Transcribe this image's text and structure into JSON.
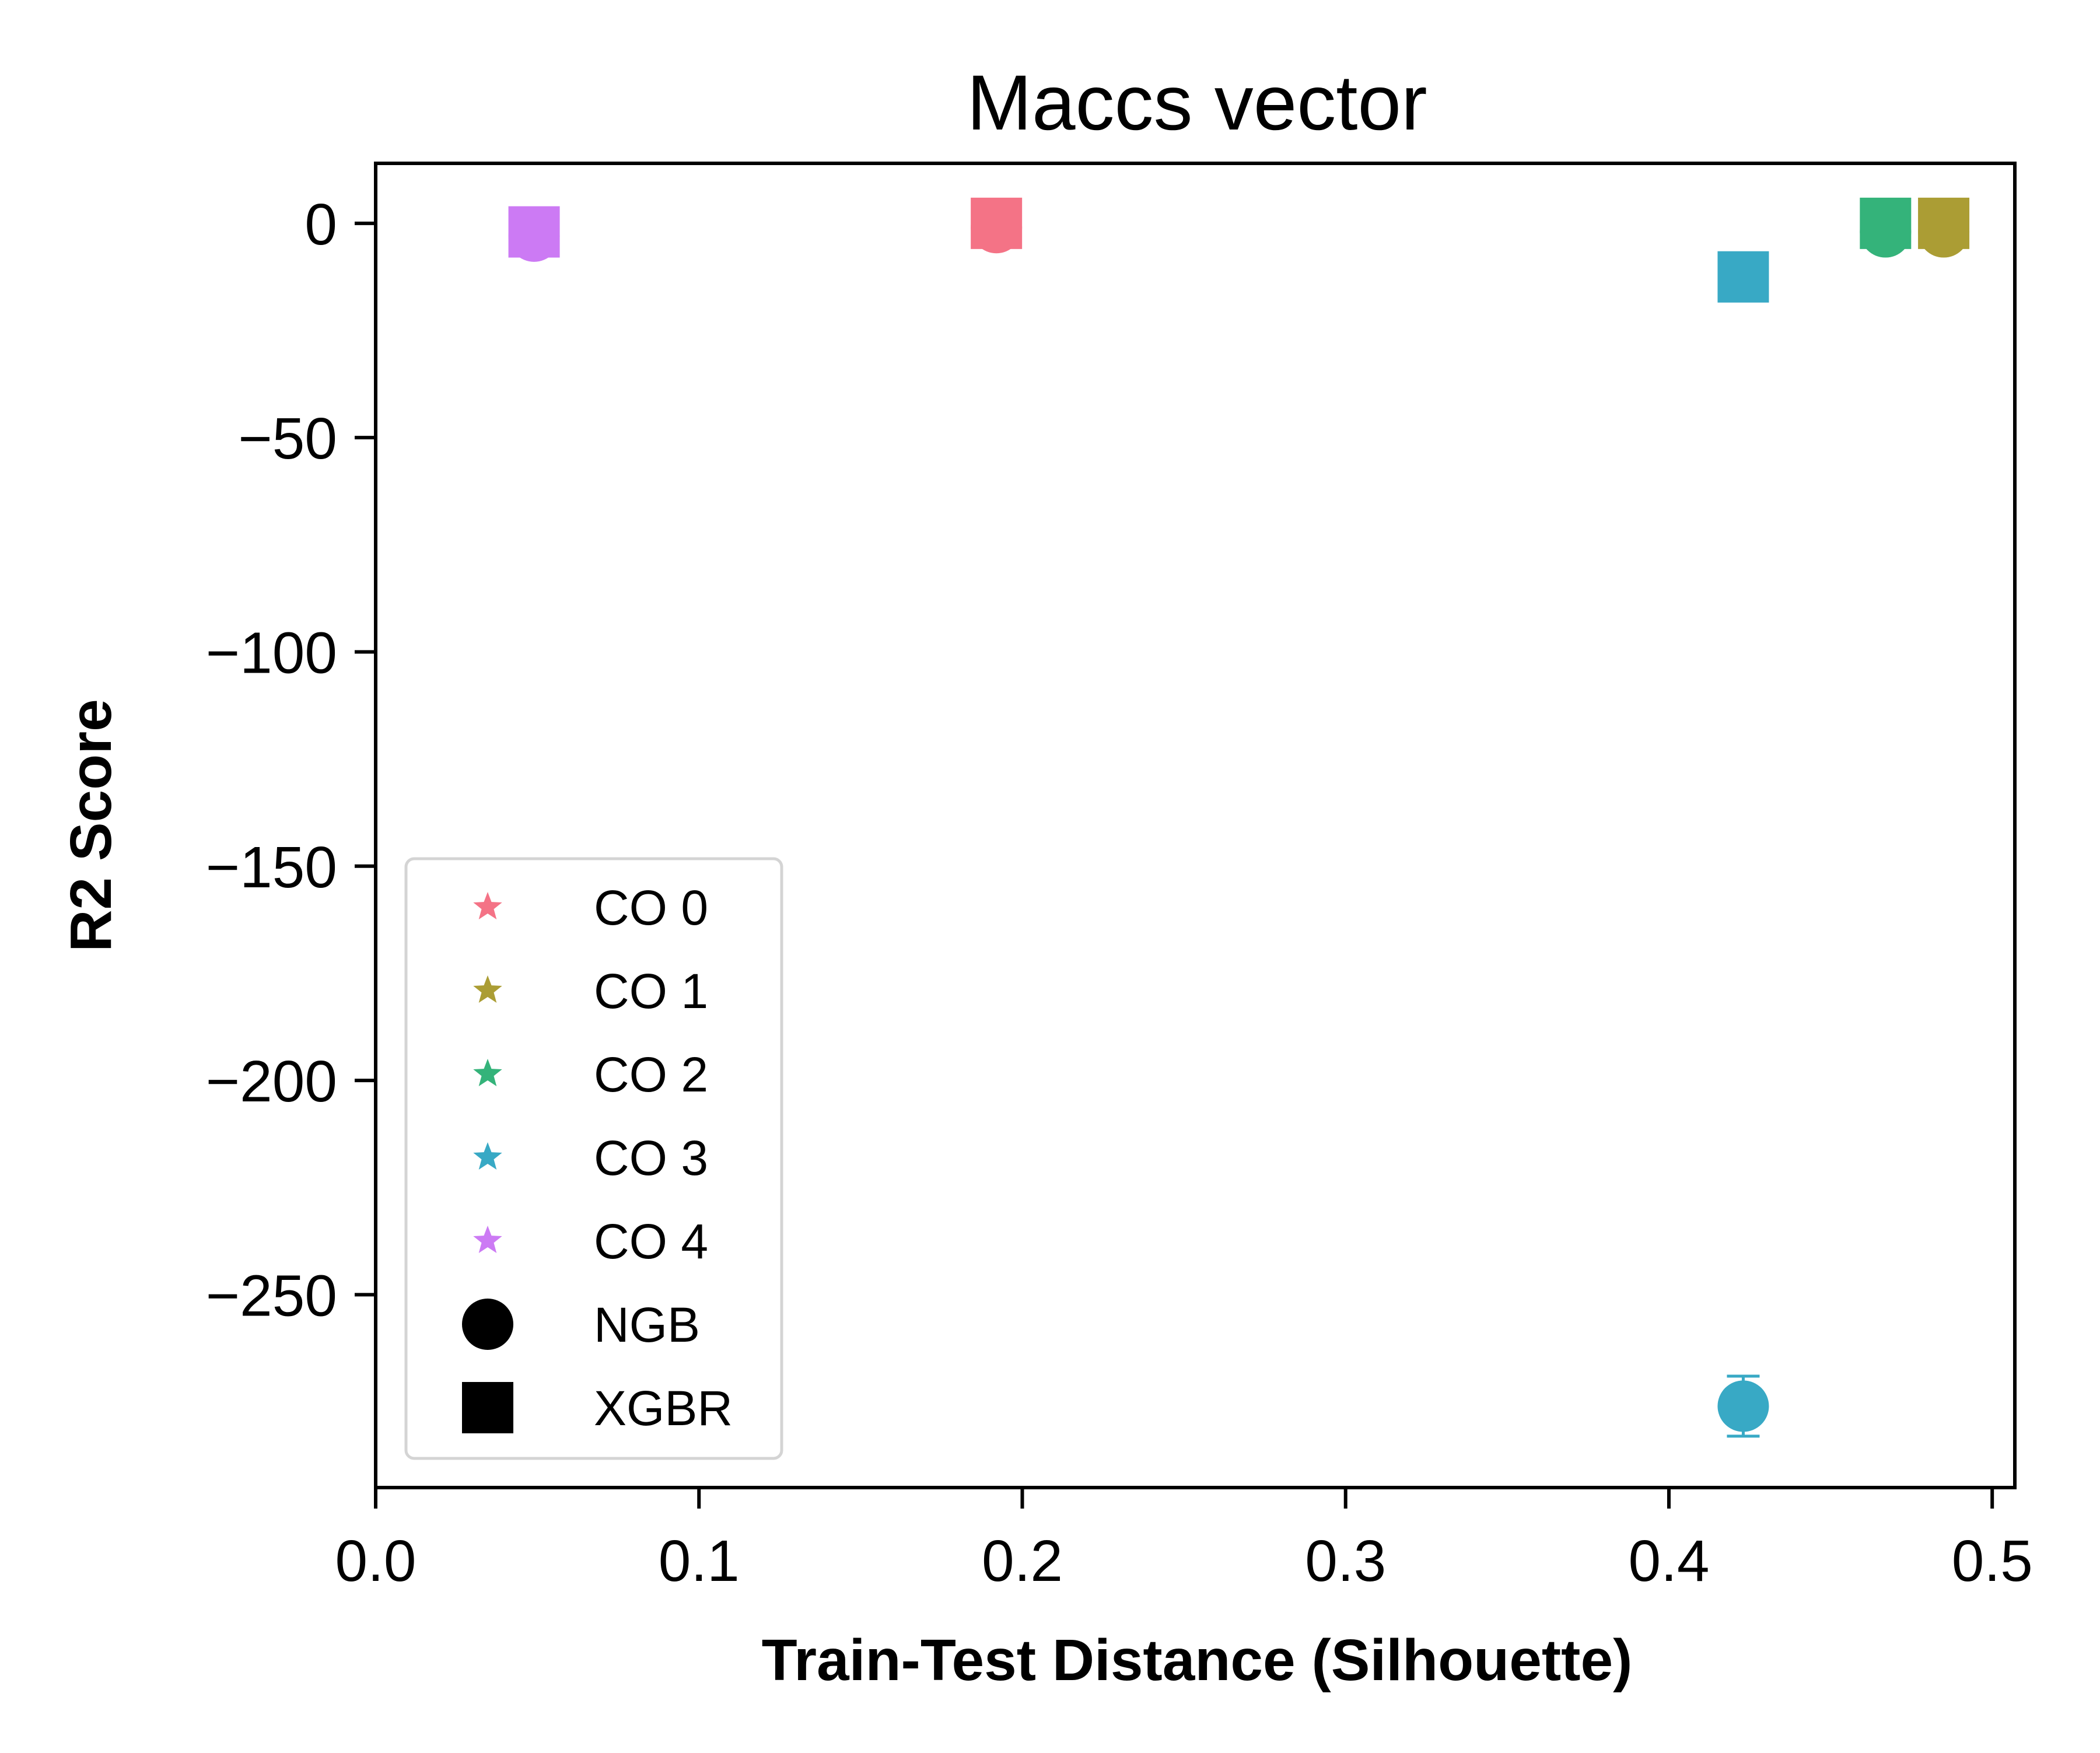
{
  "chart_data": {
    "type": "scatter",
    "title": "Maccs vector",
    "xlabel": "Train-Test Distance (Silhouette)",
    "ylabel": "R2 Score",
    "xlim": [
      0.0,
      0.507
    ],
    "ylim": [
      -295,
      14
    ],
    "xticks": [
      {
        "value": 0.0,
        "label": "0.0"
      },
      {
        "value": 0.1,
        "label": "0.1"
      },
      {
        "value": 0.2,
        "label": "0.2"
      },
      {
        "value": 0.3,
        "label": "0.3"
      },
      {
        "value": 0.4,
        "label": "0.4"
      },
      {
        "value": 0.5,
        "label": "0.5"
      }
    ],
    "yticks": [
      {
        "value": 0,
        "label": "0"
      },
      {
        "value": -50,
        "label": "−50"
      },
      {
        "value": -100,
        "label": "−100"
      },
      {
        "value": -150,
        "label": "−150"
      },
      {
        "value": -200,
        "label": "−200"
      },
      {
        "value": -250,
        "label": "−250"
      }
    ],
    "grid": false,
    "legend_position": "lower-left",
    "legend": [
      {
        "label": "CO 0",
        "marker": "star",
        "color": "#f47386"
      },
      {
        "label": "CO 1",
        "marker": "star",
        "color": "#ab9d34"
      },
      {
        "label": "CO 2",
        "marker": "star",
        "color": "#34b37a"
      },
      {
        "label": "CO 3",
        "marker": "star",
        "color": "#38a9c5"
      },
      {
        "label": "CO 4",
        "marker": "star",
        "color": "#cc7af4"
      },
      {
        "label": "NGB",
        "marker": "circle",
        "color": "#000000"
      },
      {
        "label": "XGBR",
        "marker": "square",
        "color": "#000000"
      }
    ],
    "points": [
      {
        "group": "CO 0",
        "model": "NGB",
        "x": 0.192,
        "y": -1,
        "color": "#f47386"
      },
      {
        "group": "CO 0",
        "model": "XGBR",
        "x": 0.192,
        "y": 0,
        "color": "#f47386"
      },
      {
        "group": "CO 1",
        "model": "NGB",
        "x": 0.485,
        "y": -2,
        "color": "#ab9d34"
      },
      {
        "group": "CO 1",
        "model": "XGBR",
        "x": 0.485,
        "y": 0,
        "color": "#ab9d34"
      },
      {
        "group": "CO 2",
        "model": "NGB",
        "x": 0.467,
        "y": -2,
        "color": "#34b37a"
      },
      {
        "group": "CO 2",
        "model": "XGBR",
        "x": 0.467,
        "y": 0,
        "color": "#34b37a"
      },
      {
        "group": "CO 3",
        "model": "NGB",
        "x": 0.423,
        "y": -276,
        "yerr": 7,
        "color": "#38a9c5"
      },
      {
        "group": "CO 3",
        "model": "XGBR",
        "x": 0.423,
        "y": -12.5,
        "color": "#38a9c5"
      },
      {
        "group": "CO 4",
        "model": "NGB",
        "x": 0.049,
        "y": -3,
        "color": "#cc7af4"
      },
      {
        "group": "CO 4",
        "model": "XGBR",
        "x": 0.049,
        "y": -2,
        "color": "#cc7af4"
      }
    ]
  }
}
